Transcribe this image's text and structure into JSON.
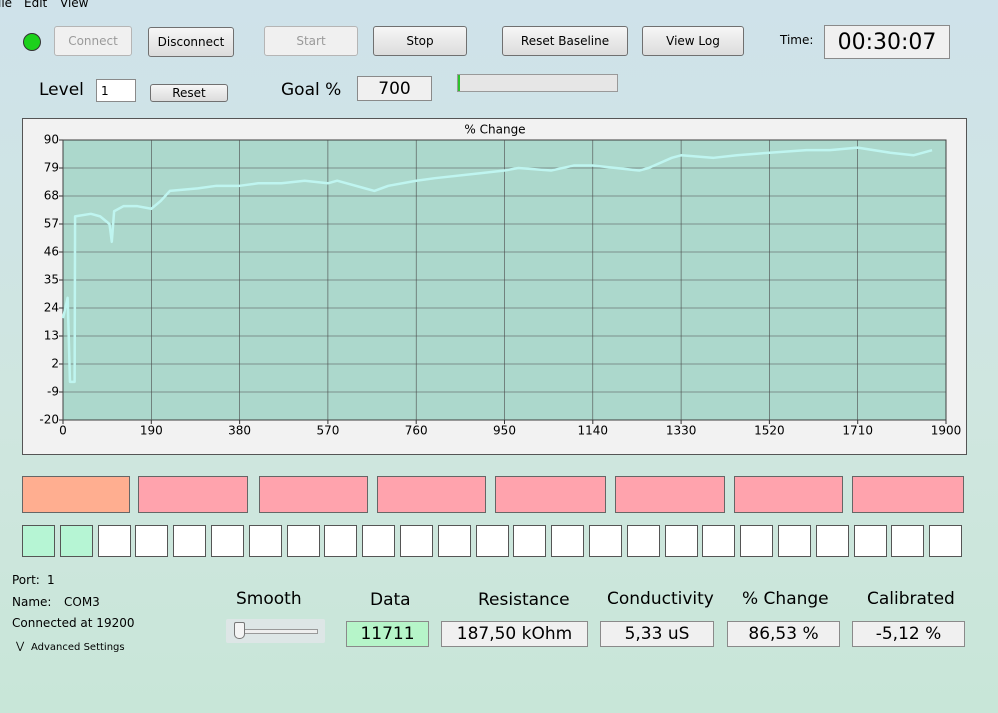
{
  "menu": [
    "ile",
    "Edit",
    "View"
  ],
  "toolbar": {
    "connect": "Connect",
    "disconnect": "Disconnect",
    "start": "Start",
    "stop": "Stop",
    "reset_baseline": "Reset Baseline",
    "view_log": "View Log",
    "time_label": "Time:",
    "time": "00:30:07"
  },
  "level": {
    "label": "Level",
    "value": "1",
    "reset": "Reset",
    "goal_label": "Goal %",
    "goal": "700"
  },
  "chart_data": {
    "type": "line",
    "title": "% Change",
    "x": [
      0,
      10,
      15,
      25,
      26,
      60,
      80,
      100,
      105,
      110,
      130,
      160,
      190,
      210,
      230,
      290,
      330,
      380,
      420,
      470,
      520,
      570,
      590,
      650,
      670,
      700,
      760,
      800,
      900,
      950,
      980,
      1050,
      1100,
      1140,
      1190,
      1240,
      1260,
      1310,
      1330,
      1400,
      1450,
      1520,
      1600,
      1650,
      1710,
      1780,
      1830,
      1870
    ],
    "series": [
      {
        "name": "% Change",
        "color": "#bff5f0",
        "values": [
          20,
          28,
          -5,
          -5,
          60,
          61,
          60,
          57,
          50,
          62,
          64,
          64,
          63,
          66,
          70,
          71,
          72,
          72,
          73,
          73,
          74,
          73,
          74,
          71,
          70,
          72,
          74,
          75,
          77,
          78,
          79,
          78,
          80,
          80,
          79,
          78,
          79,
          83,
          84,
          83,
          84,
          85,
          86,
          86,
          87,
          85,
          84,
          86
        ]
      }
    ],
    "xlim": [
      0,
      1900
    ],
    "xticks": [
      0,
      190,
      380,
      570,
      760,
      950,
      1140,
      1330,
      1520,
      1710,
      1900
    ],
    "ylim": [
      -20,
      90
    ],
    "yticks": [
      -20,
      -9,
      2,
      13,
      24,
      35,
      46,
      57,
      68,
      79,
      90
    ],
    "grid": true
  },
  "status": {
    "port_label": "Port:",
    "port": "1",
    "name_label": "Name:",
    "name": "COM3",
    "connected": "Connected at 19200",
    "advanced": "Advanced Settings"
  },
  "readouts": {
    "smooth": "Smooth",
    "data_label": "Data",
    "data": "11711",
    "resistance_label": "Resistance",
    "resistance": "187,50 kOhm",
    "conductivity_label": "Conductivity",
    "conductivity": "5,33 uS",
    "change_label": "% Change",
    "change": "86,53 %",
    "calibrated_label": "Calibrated",
    "calibrated": "-5,12 %"
  }
}
